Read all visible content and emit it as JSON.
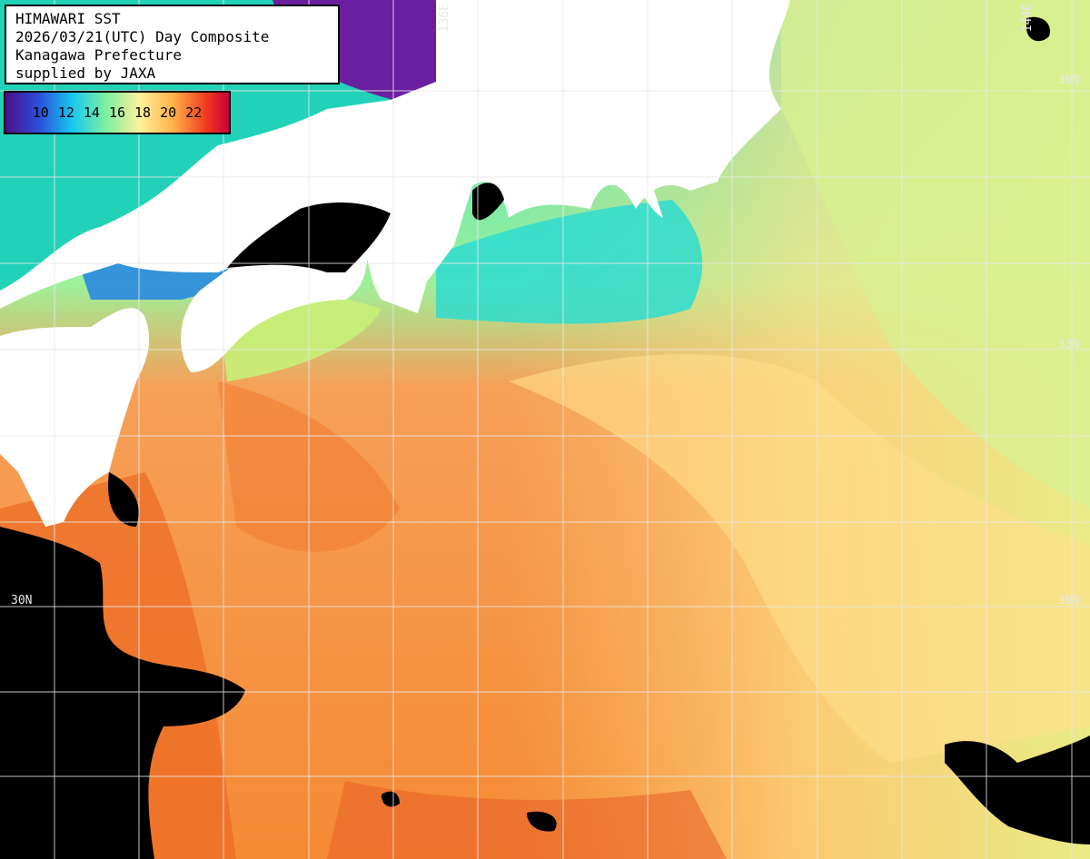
{
  "header": {
    "lines": [
      "HIMAWARI SST",
      "2026/03/21(UTC) Day Composite",
      "Kanagawa Prefecture",
      "supplied by JAXA"
    ]
  },
  "legend": {
    "ticks": [
      "10",
      "12",
      "14",
      "16",
      "18",
      "20",
      "22"
    ],
    "colors": [
      "#4b0f8a",
      "#2b6fe0",
      "#18d8e0",
      "#b8f07a",
      "#fff0a0",
      "#ffb24a",
      "#f03a1e",
      "#c8003a"
    ]
  },
  "grid_labels": {
    "lon_136": "136E",
    "lon_144": "144E",
    "lat_36": "36N",
    "lat_33": "33N",
    "lat_30_left": "30N",
    "lat_30_right": "30N"
  },
  "colors": {
    "land": "#ffffff",
    "no_data": "#000000",
    "warm": "#f4842e",
    "mid": "#ffd07a",
    "cool": "#c8f08a",
    "cold": "#2ee0c8",
    "coldest": "#6a1fa0"
  }
}
